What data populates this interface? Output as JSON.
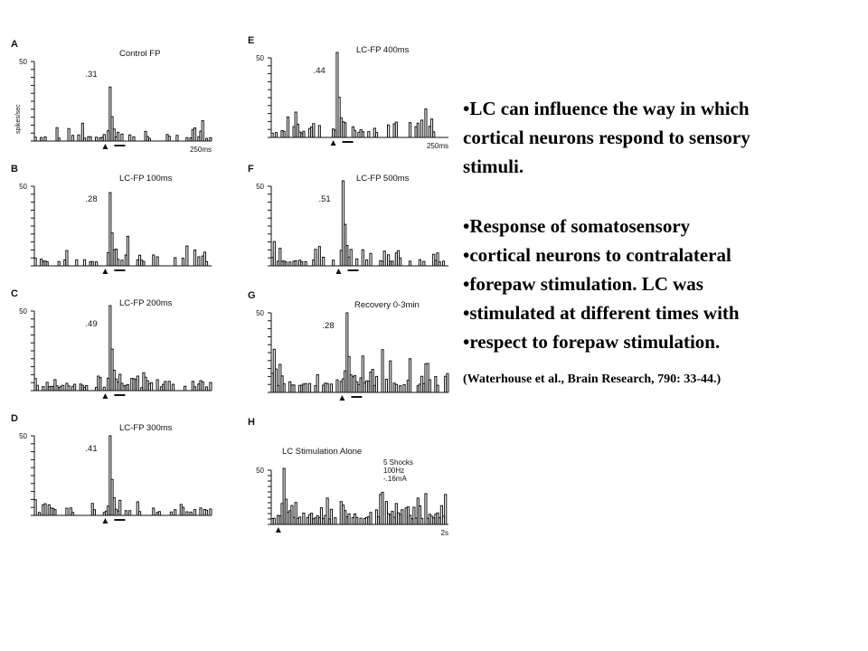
{
  "text": {
    "paragraph1": [
      "•LC can influence the way in which",
      "cortical neurons respond to sensory",
      "stimuli."
    ],
    "paragraph2": [
      "•Response of somatosensory",
      "•cortical neurons to contralateral",
      "•forepaw stimulation. LC was",
      "•stimulated at different times with",
      "•respect to forepaw stimulation."
    ],
    "citation": "(Waterhouse et al., Brain Research, 790: 33-44.)"
  },
  "chart_data": [
    {
      "type": "bar",
      "panel": "A",
      "title": "Control FP",
      "value_label": ".31",
      "ylabel": "spikes/sec",
      "ytick": "50",
      "xlabel": "250ms",
      "ylim": [
        0,
        50
      ],
      "stim_position": 0.4,
      "response_peak": 34,
      "baseline_max": 8,
      "density": 0.36,
      "seed": 11
    },
    {
      "type": "bar",
      "panel": "B",
      "title": "LC-FP 100ms",
      "value_label": ".28",
      "ytick": "50",
      "ylim": [
        0,
        50
      ],
      "stim_position": 0.4,
      "response_peak": 46,
      "baseline_max": 12,
      "density": 0.42,
      "seed": 23
    },
    {
      "type": "bar",
      "panel": "C",
      "title": "LC-FP 200ms",
      "value_label": ".49",
      "ytick": "50",
      "ylim": [
        0,
        50
      ],
      "stim_position": 0.4,
      "response_peak": 58,
      "baseline_max": 9,
      "density": 0.5,
      "seed": 37
    },
    {
      "type": "bar",
      "panel": "D",
      "title": "LC-FP 300ms",
      "value_label": ".41",
      "ytick": "50",
      "ylim": [
        0,
        50
      ],
      "stim_position": 0.4,
      "response_peak": 50,
      "baseline_max": 9,
      "density": 0.4,
      "seed": 41
    },
    {
      "type": "bar",
      "panel": "E",
      "title": "LC-FP 400ms",
      "value_label": ".44",
      "ytick": "50",
      "xlabel": "250ms",
      "ylim": [
        0,
        50
      ],
      "stim_position": 0.35,
      "response_peak": 56,
      "baseline_max": 13,
      "density": 0.38,
      "seed": 53
    },
    {
      "type": "bar",
      "panel": "F",
      "title": "LC-FP 500ms",
      "value_label": ".51",
      "ytick": "50",
      "ylim": [
        0,
        50
      ],
      "stim_position": 0.38,
      "response_peak": 58,
      "baseline_max": 12,
      "density": 0.42,
      "seed": 67
    },
    {
      "type": "bar",
      "panel": "G",
      "title": "Recovery 0-3min",
      "value_label": ".28",
      "ytick": "50",
      "ylim": [
        0,
        50
      ],
      "stim_position": 0.4,
      "response_peak": 50,
      "baseline_max": 20,
      "density": 0.62,
      "seed": 79
    },
    {
      "type": "bar",
      "panel": "H",
      "title": "LC Stimulation Alone",
      "annotation": [
        "5 Shocks",
        "100Hz",
        "-.16mA"
      ],
      "ytick": "50",
      "xlabel": "2s",
      "ylim": [
        0,
        60
      ],
      "stim_position": 0.04,
      "response_peak": 62,
      "baseline_max": 30,
      "density": 0.85,
      "seed": 97
    }
  ]
}
